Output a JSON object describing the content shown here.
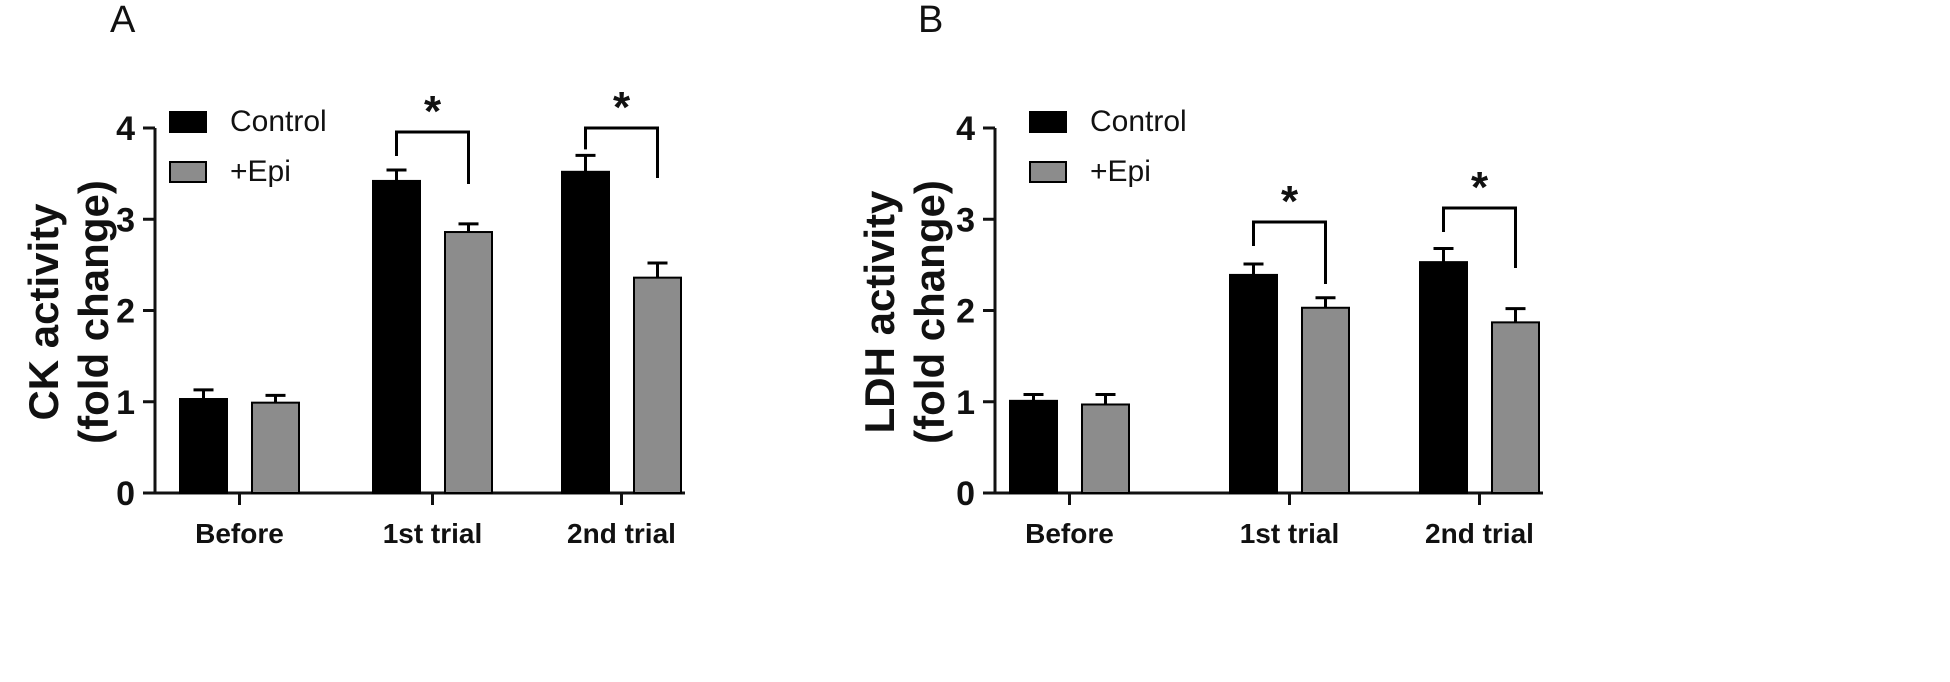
{
  "colors": {
    "control": "#000000",
    "epi": "#8c8c8c",
    "axis": "#111111"
  },
  "chart_data": [
    {
      "type": "bar",
      "panel": "A",
      "ylabel": [
        "CK activity",
        "(fold change)"
      ],
      "categories": [
        "Before",
        "1st trial",
        "2nd trial"
      ],
      "ylim": [
        0,
        4
      ],
      "yticks": [
        0,
        1,
        2,
        3,
        4
      ],
      "legend": "top-left",
      "series": [
        {
          "name": "Control",
          "values": [
            1.03,
            3.42,
            3.52
          ],
          "errors": [
            0.1,
            0.12,
            0.18
          ]
        },
        {
          "name": "+Epi",
          "values": [
            0.99,
            2.86,
            2.36
          ],
          "errors": [
            0.08,
            0.09,
            0.16
          ]
        }
      ],
      "significance": [
        {
          "category": "1st trial",
          "label": "*"
        },
        {
          "category": "2nd trial",
          "label": "*"
        }
      ]
    },
    {
      "type": "bar",
      "panel": "B",
      "ylabel": [
        "LDH activity",
        "(fold change)"
      ],
      "categories": [
        "Before",
        "1st trial",
        "2nd trial"
      ],
      "ylim": [
        0,
        4
      ],
      "yticks": [
        0,
        1,
        2,
        3,
        4
      ],
      "legend": "top-left",
      "series": [
        {
          "name": "Control",
          "values": [
            1.01,
            2.39,
            2.53
          ],
          "errors": [
            0.07,
            0.12,
            0.15
          ]
        },
        {
          "name": "+Epi",
          "values": [
            0.97,
            2.03,
            1.87
          ],
          "errors": [
            0.11,
            0.11,
            0.15
          ]
        }
      ],
      "significance": [
        {
          "category": "1st trial",
          "label": "*"
        },
        {
          "category": "2nd trial",
          "label": "*"
        }
      ]
    }
  ]
}
